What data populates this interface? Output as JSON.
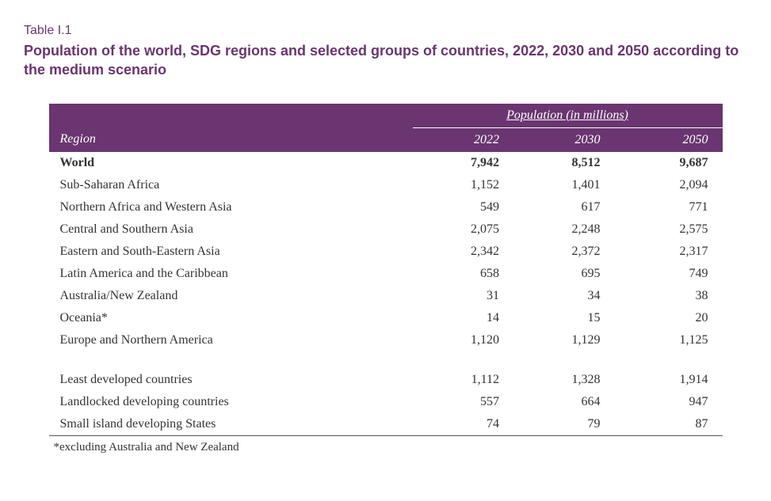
{
  "table_label": "Table I.1",
  "title": "Population of the world, SDG regions and selected groups of countries, 2022, 2030 and 2050 according to the medium scenario",
  "header": {
    "region": "Region",
    "pop_header": "Population (in millions)",
    "years": [
      "2022",
      "2030",
      "2050"
    ]
  },
  "rows_main": [
    {
      "name": "World",
      "bold": true,
      "v": [
        "7,942",
        "8,512",
        "9,687"
      ]
    },
    {
      "name": "Sub-Saharan Africa",
      "bold": false,
      "v": [
        "1,152",
        "1,401",
        "2,094"
      ]
    },
    {
      "name": "Northern Africa and Western Asia",
      "bold": false,
      "v": [
        "549",
        "617",
        "771"
      ]
    },
    {
      "name": "Central and Southern Asia",
      "bold": false,
      "v": [
        "2,075",
        "2,248",
        "2,575"
      ]
    },
    {
      "name": "Eastern and South-Eastern Asia",
      "bold": false,
      "v": [
        "2,342",
        "2,372",
        "2,317"
      ]
    },
    {
      "name": "Latin America and the Caribbean",
      "bold": false,
      "v": [
        "658",
        "695",
        "749"
      ]
    },
    {
      "name": "Australia/New Zealand",
      "bold": false,
      "v": [
        "31",
        "34",
        "38"
      ]
    },
    {
      "name": "Oceania*",
      "bold": false,
      "v": [
        "14",
        "15",
        "20"
      ]
    },
    {
      "name": "Europe and Northern America",
      "bold": false,
      "v": [
        "1,120",
        "1,129",
        "1,125"
      ]
    }
  ],
  "rows_groups": [
    {
      "name": "Least developed countries",
      "v": [
        "1,112",
        "1,328",
        "1,914"
      ]
    },
    {
      "name": "Landlocked developing countries",
      "v": [
        "557",
        "664",
        "947"
      ]
    },
    {
      "name": "Small island developing States",
      "v": [
        "74",
        "79",
        "87"
      ]
    }
  ],
  "footnote": "*excluding Australia and New Zealand",
  "colors": {
    "accent": "#6a3570",
    "text": "#333333",
    "bg": "#ffffff",
    "rule": "#555555"
  }
}
